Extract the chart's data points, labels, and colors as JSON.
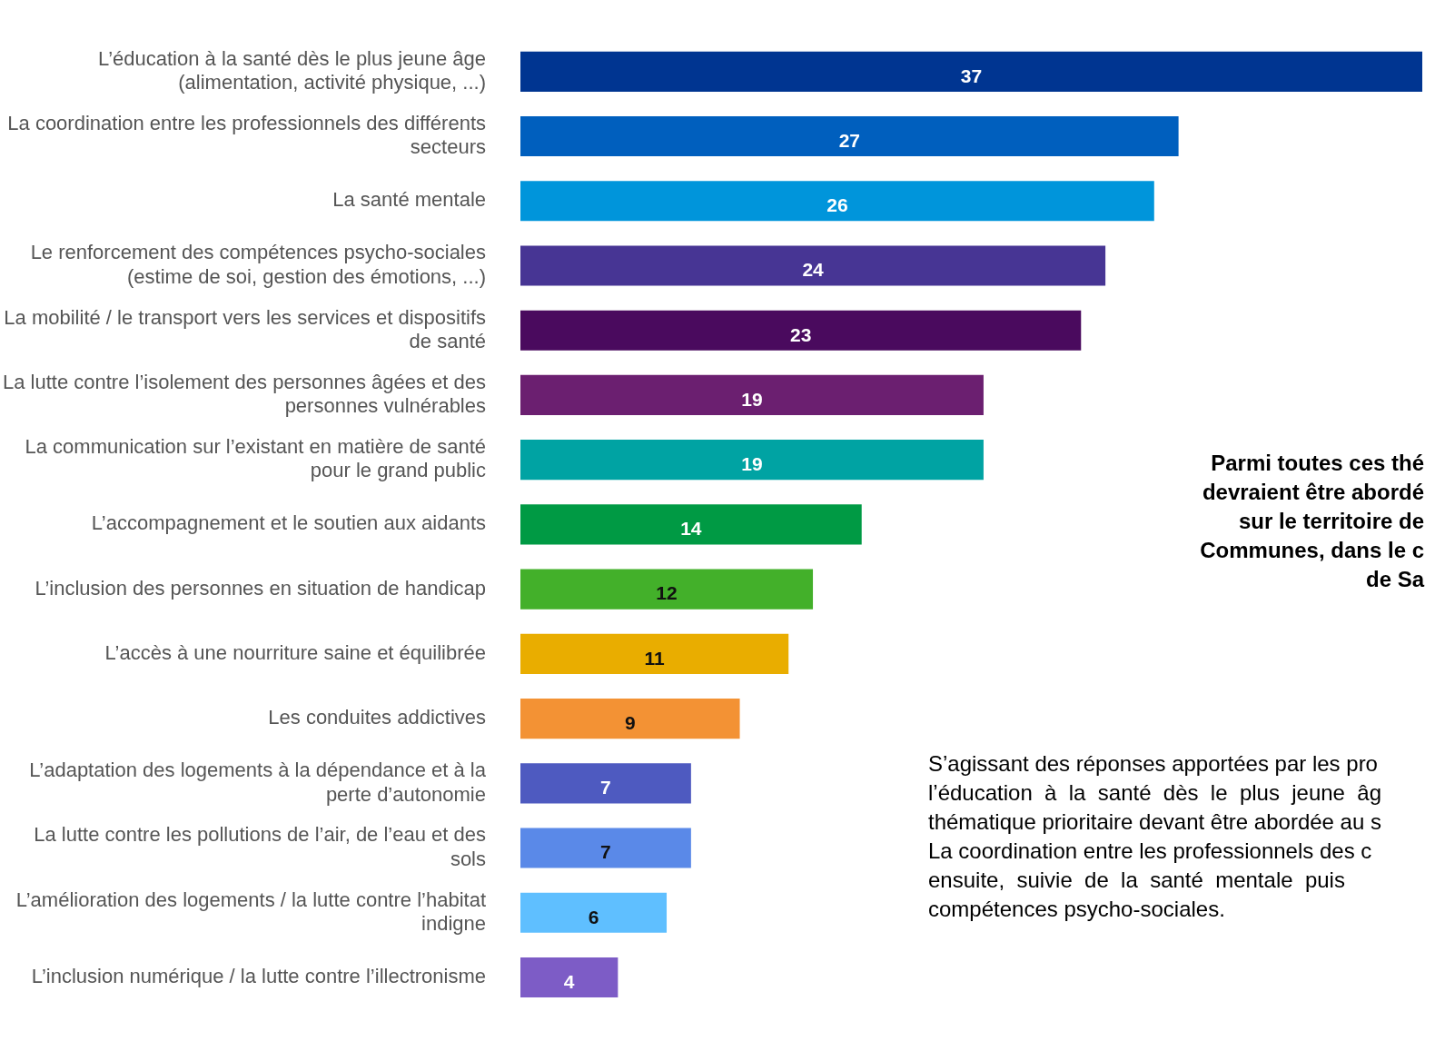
{
  "chart_data": {
    "type": "bar",
    "orientation": "horizontal",
    "data_labels": true,
    "title": "Parmi toutes ces thé\ndevraient être abordé\nsur le territoire de\nCommunes, dans le c\nde Sa",
    "annotations": [
      "S’agissant des réponses apportées par les pro\nl’éducation  à  la  santé  dès  le  plus  jeune  âg\nthématique prioritaire devant être abordée au s\nLa coordination entre les professionnels des c\nensuite,  suivie  de  la  santé  mentale  puis \ncompétences psycho-sociales."
    ],
    "categories": [
      "L’éducation à la santé dès le plus jeune âge (alimentation, activité physique, ...)",
      "La coordination entre les professionnels des différents secteurs",
      "La santé mentale",
      "Le renforcement des compétences psycho-sociales (estime de soi, gestion des émotions, ...)",
      "La mobilité / le transport vers les services et dispositifs de santé",
      "La lutte contre l’isolement des personnes âgées et des personnes vulnérables",
      "La communication sur l’existant en matière de santé pour le grand public",
      "L’accompagnement et le soutien aux aidants",
      "L’inclusion des personnes en situation de handicap",
      "L’accès à une nourriture saine et équilibrée",
      "Les conduites addictives",
      "L’adaptation des logements à la dépendance et à la perte d’autonomie",
      "La lutte contre les pollutions de l’air, de l’eau et des sols",
      "L’amélioration des logements / la lutte contre l’habitat indigne",
      "L’inclusion numérique / la lutte contre l’illectronisme"
    ],
    "values": [
      37,
      27,
      26,
      24,
      23,
      19,
      19,
      14,
      12,
      11,
      9,
      7,
      7,
      6,
      4
    ],
    "colors": [
      "#003591",
      "#005fbe",
      "#0095db",
      "#473594",
      "#4a0a5e",
      "#6b1f70",
      "#00a3a3",
      "#009a44",
      "#43b02a",
      "#e9ad00",
      "#f39234",
      "#4e5ac0",
      "#5a89e8",
      "#5fbfff",
      "#7d5cc6"
    ]
  }
}
